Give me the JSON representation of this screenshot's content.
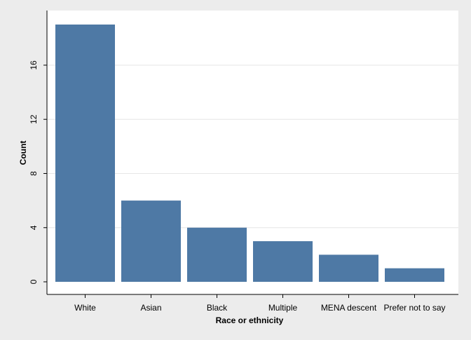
{
  "chart_data": {
    "type": "bar",
    "categories": [
      "White",
      "Asian",
      "Black",
      "Multiple",
      "MENA descent",
      "Prefer not to say"
    ],
    "values": [
      19,
      6,
      4,
      3,
      2,
      1
    ],
    "title": "",
    "xlabel": "Race or ethnicity",
    "ylabel": "Count",
    "ylim": [
      0,
      19
    ],
    "yticks": [
      0,
      4,
      8,
      12,
      16
    ],
    "grid": true,
    "colors": {
      "bar": "#4e79a5",
      "plot_background": "#ffffff",
      "outer_background": "#ececec",
      "gridline": "#e6e6e6",
      "axis": "#000000",
      "text": "#000000"
    }
  }
}
